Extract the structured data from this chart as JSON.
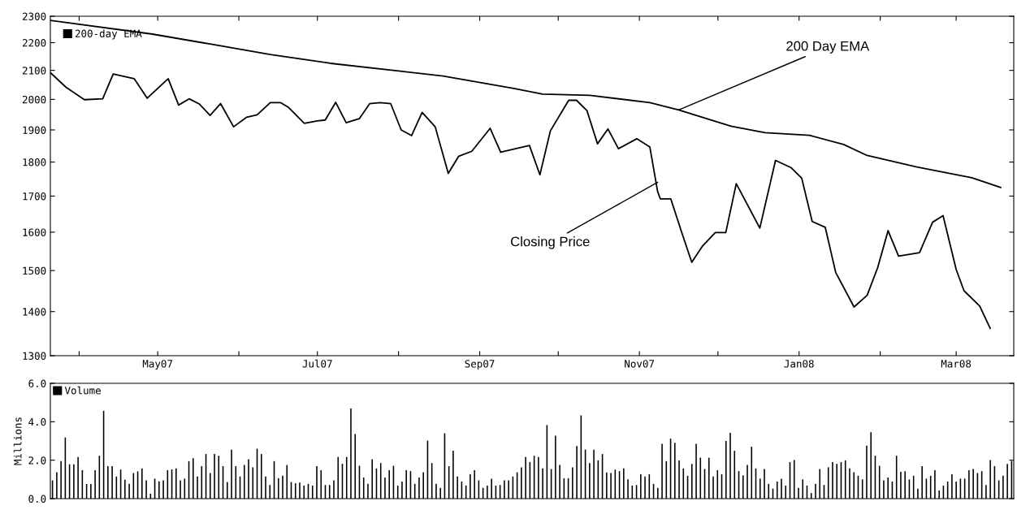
{
  "chart_data": [
    {
      "type": "line",
      "log": true,
      "legend": "top left",
      "grid": false,
      "marker": "none",
      "line_style": "solid",
      "xlim": [
        "2007-03-21",
        "2008-03-23"
      ],
      "xticks": [
        {
          "value": "2007-04-01",
          "label": null
        },
        {
          "value": "2007-05-01",
          "label": "May07"
        },
        {
          "value": "2007-06-01",
          "label": null
        },
        {
          "value": "2007-07-01",
          "label": "Jul07"
        },
        {
          "value": "2007-08-01",
          "label": null
        },
        {
          "value": "2007-09-01",
          "label": "Sep07"
        },
        {
          "value": "2007-10-01",
          "label": null
        },
        {
          "value": "2007-11-01",
          "label": "Nov07"
        },
        {
          "value": "2007-12-01",
          "label": null
        },
        {
          "value": "2008-01-01",
          "label": "Jan08"
        },
        {
          "value": "2008-02-01",
          "label": null
        },
        {
          "value": "2008-03-01",
          "label": "Mar08"
        }
      ],
      "ylim": [
        1300,
        2300
      ],
      "yticks": [
        1300,
        1400,
        1500,
        1600,
        1700,
        1800,
        1900,
        2000,
        2100,
        2200,
        2300
      ],
      "series": [
        {
          "color": "#000000",
          "x": [
            "2007-03-21",
            "2007-03-27",
            "2007-04-03",
            "2007-04-10",
            "2007-04-14",
            "2007-04-22",
            "2007-04-27",
            "2007-05-05",
            "2007-05-09",
            "2007-05-13",
            "2007-05-17",
            "2007-05-21",
            "2007-05-25",
            "2007-05-30",
            "2007-06-04",
            "2007-06-08",
            "2007-06-13",
            "2007-06-17",
            "2007-06-20",
            "2007-06-26",
            "2007-07-01",
            "2007-07-04",
            "2007-07-08",
            "2007-07-12",
            "2007-07-17",
            "2007-07-21",
            "2007-07-25",
            "2007-07-29",
            "2007-08-02",
            "2007-08-06",
            "2007-08-10",
            "2007-08-15",
            "2007-08-20",
            "2007-08-24",
            "2007-08-29",
            "2007-09-05",
            "2007-09-09",
            "2007-09-20",
            "2007-09-24",
            "2007-09-28",
            "2007-10-05",
            "2007-10-08",
            "2007-10-12",
            "2007-10-16",
            "2007-10-20",
            "2007-10-24",
            "2007-10-31",
            "2007-11-05",
            "2007-11-08",
            "2007-11-09",
            "2007-11-13",
            "2007-11-17",
            "2007-11-21",
            "2007-11-25",
            "2007-11-30",
            "2007-12-04",
            "2007-12-08",
            "2007-12-17",
            "2007-12-23",
            "2007-12-29",
            "2008-01-02",
            "2008-01-06",
            "2008-01-11",
            "2008-01-15",
            "2008-01-22",
            "2008-01-27",
            "2008-01-31",
            "2008-02-04",
            "2008-02-08",
            "2008-02-16",
            "2008-02-21",
            "2008-02-25",
            "2008-03-01",
            "2008-03-04",
            "2008-03-10",
            "2008-03-14"
          ],
          "values": [
            2092,
            2041,
            1999,
            2002,
            2087,
            2071,
            2004,
            2071,
            1981,
            2002,
            1984,
            1947,
            1986,
            1910,
            1941,
            1949,
            1989,
            1989,
            1973,
            1921,
            1929,
            1932,
            1990,
            1923,
            1936,
            1986,
            1989,
            1986,
            1900,
            1882,
            1957,
            1910,
            1766,
            1818,
            1833,
            1905,
            1830,
            1851,
            1762,
            1897,
            1997,
            1997,
            1962,
            1856,
            1903,
            1841,
            1872,
            1846,
            1712,
            1692,
            1692,
            1603,
            1521,
            1562,
            1599,
            1599,
            1736,
            1611,
            1805,
            1783,
            1752,
            1629,
            1613,
            1495,
            1411,
            1439,
            1507,
            1604,
            1537,
            1546,
            1627,
            1645,
            1503,
            1450,
            1413,
            1361
          ]
        },
        {
          "name": "200-day EMA",
          "color": "#000000",
          "x": [
            "2007-03-21",
            "2007-04-29",
            "2007-05-21",
            "2007-06-13",
            "2007-07-06",
            "2007-08-01",
            "2007-08-18",
            "2007-09-14",
            "2007-09-25",
            "2007-10-13",
            "2007-11-05",
            "2007-11-16",
            "2007-12-06",
            "2007-12-19",
            "2008-01-05",
            "2008-01-18",
            "2008-01-27",
            "2008-02-15",
            "2008-03-07",
            "2008-03-18"
          ],
          "values": [
            2284,
            2232,
            2195,
            2157,
            2125,
            2098,
            2080,
            2037,
            2018,
            2014,
            1989,
            1965,
            1912,
            1891,
            1883,
            1854,
            1820,
            1785,
            1753,
            1725
          ]
        }
      ],
      "annotations": [
        {
          "text": "200 Day EMA",
          "x": "2007-11-16",
          "y": 1965
        },
        {
          "text": "Closing Price",
          "x": "2007-11-08",
          "y": 1740
        }
      ]
    },
    {
      "type": "bar",
      "ylabel": "Millions",
      "legend": "top left",
      "grid": false,
      "tick_labels": "y",
      "ylim": [
        0,
        6
      ],
      "yticks": [
        {
          "value": 0,
          "label": "0.0"
        },
        {
          "value": 2,
          "label": "2.0"
        },
        {
          "value": 4,
          "label": "4.0"
        },
        {
          "value": 6,
          "label": "6.0"
        }
      ],
      "categories": [
        null,
        null,
        null,
        null,
        null,
        null,
        null,
        null,
        null,
        null,
        null,
        null,
        null,
        null,
        null,
        null,
        null,
        null,
        null,
        null,
        null,
        null,
        null,
        null,
        null,
        null,
        null,
        null,
        null,
        null,
        null,
        null,
        null,
        null,
        null,
        null,
        null,
        null,
        null,
        null,
        null,
        null,
        null,
        null,
        null,
        null,
        null,
        null,
        null,
        null,
        null,
        null,
        null,
        null,
        null,
        null,
        null,
        null,
        null,
        null,
        null,
        null,
        null,
        null,
        null,
        null,
        null,
        null,
        null,
        null,
        null,
        null,
        null,
        null,
        null,
        null,
        null,
        null,
        null,
        null,
        null,
        null,
        null,
        null,
        null,
        null,
        null,
        null,
        null,
        null,
        null,
        null,
        null,
        null,
        null,
        null,
        null,
        null,
        null,
        null,
        null,
        null,
        null,
        null,
        null,
        null,
        null,
        null,
        null,
        null,
        null,
        null,
        null,
        null,
        null,
        null,
        null,
        null,
        null,
        null,
        null,
        null,
        null,
        null,
        null,
        null,
        null,
        null,
        null,
        null,
        null,
        null,
        null,
        null,
        null,
        null,
        null,
        null,
        null,
        null,
        null,
        null,
        null,
        null,
        null,
        null,
        null,
        null,
        null,
        null,
        null,
        null,
        null,
        null,
        null,
        null,
        null,
        null,
        null,
        null,
        null,
        null,
        null,
        null,
        null,
        null,
        null,
        null,
        null,
        null,
        null,
        null,
        null,
        null,
        null,
        null,
        null,
        null,
        null,
        null,
        null,
        null,
        null,
        null,
        null,
        null,
        null,
        null,
        null,
        null,
        null,
        null,
        null,
        null,
        null,
        null,
        null,
        null,
        null,
        null,
        null,
        null,
        null,
        null,
        null,
        null,
        null,
        null,
        null,
        null,
        null,
        null,
        null,
        null,
        null,
        null,
        null,
        null,
        null,
        null,
        null,
        null,
        null,
        null,
        null,
        null
      ],
      "series": [
        {
          "name": "Volume",
          "color": "#000000",
          "values": [
            0.95,
            1.37,
            1.95,
            3.18,
            1.79,
            1.79,
            2.17,
            1.48,
            0.76,
            0.76,
            1.48,
            2.23,
            4.57,
            1.69,
            1.69,
            1.15,
            1.51,
            0.98,
            0.77,
            1.33,
            1.42,
            1.57,
            0.95,
            0.26,
            1.04,
            0.9,
            0.95,
            1.48,
            1.52,
            1.57,
            0.95,
            1.04,
            1.95,
            2.1,
            1.15,
            1.69,
            2.32,
            1.33,
            2.32,
            2.23,
            1.69,
            0.86,
            2.55,
            1.69,
            1.15,
            1.75,
            2.05,
            1.63,
            2.6,
            2.32,
            1.15,
            0.71,
            1.95,
            1.06,
            1.19,
            1.75,
            0.86,
            0.8,
            0.83,
            0.68,
            0.77,
            0.68,
            1.69,
            1.48,
            0.71,
            0.71,
            0.95,
            2.17,
            1.81,
            2.17,
            4.69,
            3.36,
            1.71,
            1.1,
            0.77,
            2.05,
            1.57,
            1.85,
            1.1,
            1.48,
            1.71,
            0.68,
            0.89,
            1.48,
            1.43,
            0.77,
            1.1,
            1.37,
            3.02,
            1.85,
            0.77,
            0.56,
            3.4,
            1.69,
            2.49,
            1.15,
            0.89,
            0.68,
            1.27,
            1.48,
            0.95,
            0.56,
            0.68,
            1.04,
            0.68,
            0.71,
            0.95,
            0.95,
            1.15,
            1.37,
            1.63,
            2.17,
            1.9,
            2.23,
            2.17,
            1.57,
            3.83,
            1.54,
            3.27,
            1.75,
            1.06,
            1.06,
            1.63,
            2.74,
            4.33,
            2.55,
            1.85,
            2.55,
            1.99,
            2.32,
            1.36,
            1.33,
            1.51,
            1.43,
            1.57,
            1.0,
            0.68,
            0.71,
            1.27,
            1.15,
            1.27,
            0.77,
            0.56,
            2.85,
            1.95,
            3.12,
            2.9,
            1.99,
            1.57,
            1.19,
            1.81,
            2.85,
            2.13,
            1.54,
            2.13,
            1.15,
            1.48,
            1.27,
            3.0,
            3.42,
            2.49,
            1.43,
            1.21,
            1.75,
            2.7,
            1.57,
            1.04,
            1.54,
            0.77,
            0.52,
            0.89,
            1.04,
            0.68,
            1.9,
            2.01,
            0.56,
            1.0,
            0.68,
            0.29,
            0.77,
            1.54,
            0.71,
            1.63,
            1.9,
            1.81,
            1.9,
            1.99,
            1.57,
            1.37,
            1.19,
            1.0,
            2.76,
            3.45,
            2.23,
            1.71,
            0.95,
            1.1,
            0.89,
            2.23,
            1.39,
            1.43,
            1.0,
            1.19,
            0.52,
            1.69,
            1.04,
            1.19,
            1.48,
            0.42,
            0.68,
            0.89,
            1.27,
            0.89,
            1.04,
            1.04,
            1.48,
            1.54,
            1.33,
            1.43,
            0.71,
            2.01,
            1.69,
            0.95,
            1.19,
            1.81,
            1.96
          ]
        }
      ]
    }
  ]
}
